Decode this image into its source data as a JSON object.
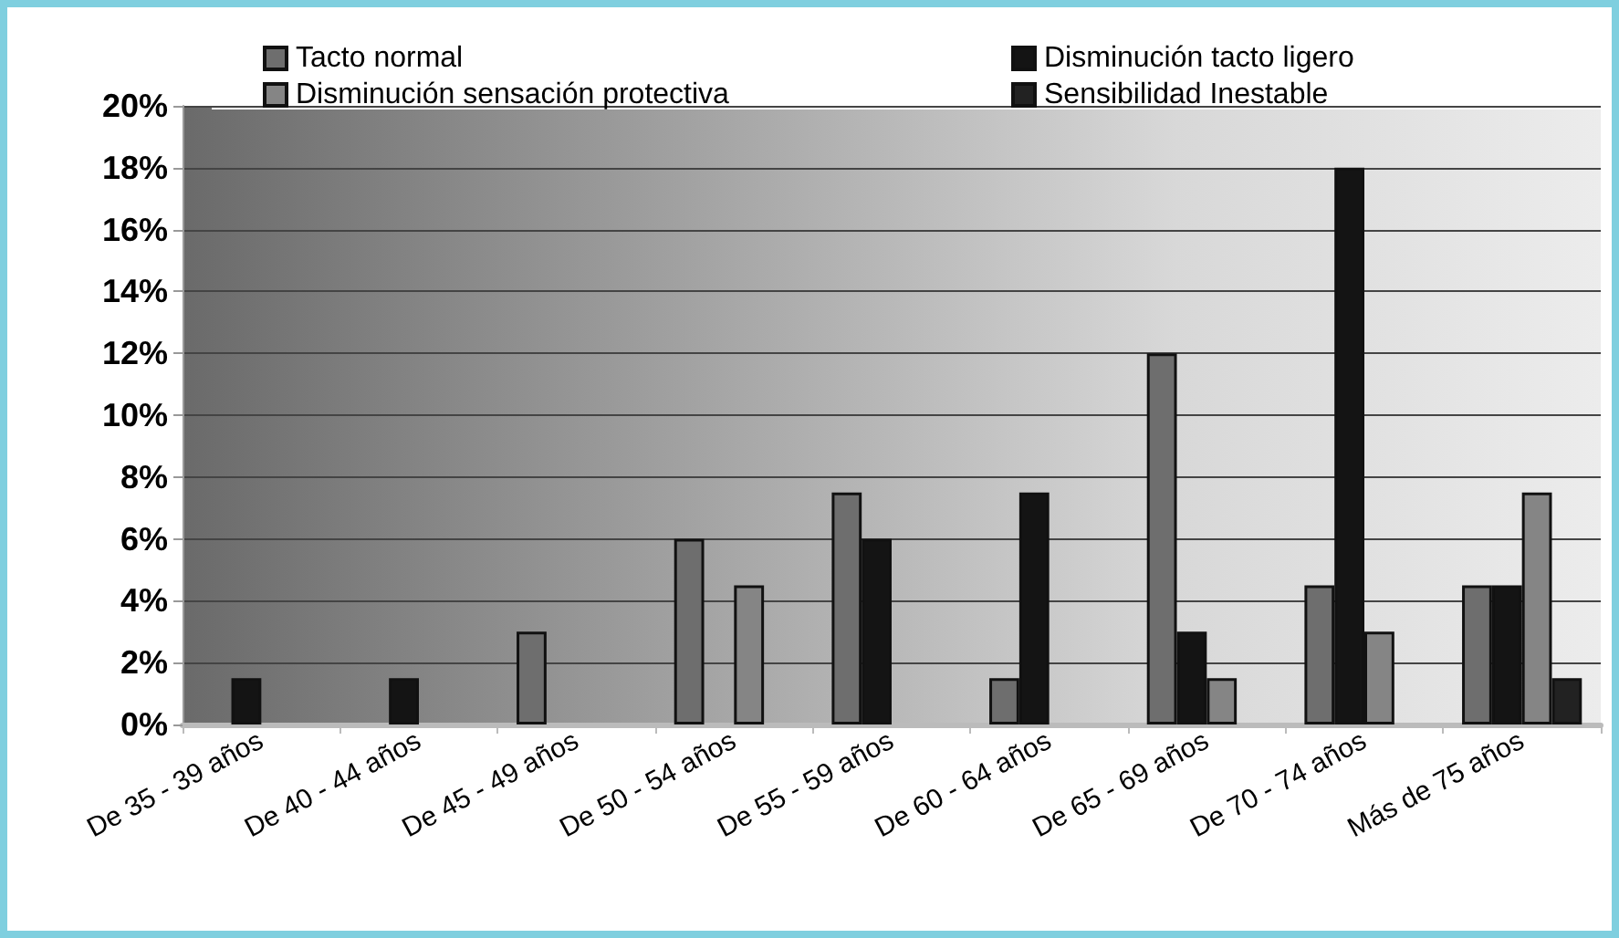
{
  "chart_data": {
    "type": "bar",
    "categories": [
      "De 35 - 39 años",
      "De 40 - 44 años",
      "De 45 - 49 años",
      "De 50 - 54 años",
      "De 55 - 59 años",
      "De 60 - 64 años",
      "De 65 - 69 años",
      "De 70 - 74 años",
      "Más de 75 años"
    ],
    "series": [
      {
        "name": "Tacto normal",
        "color": "#6e6e6e",
        "values": [
          null,
          null,
          3,
          6,
          7.5,
          1.5,
          12,
          4.5,
          4.5
        ]
      },
      {
        "name": "Disminución tacto ligero",
        "color": "#141414",
        "values": [
          1.5,
          1.5,
          null,
          null,
          6,
          7.5,
          3,
          18,
          4.5
        ]
      },
      {
        "name": "Disminución sensación protectiva",
        "color": "#858585",
        "values": [
          null,
          null,
          null,
          4.5,
          null,
          null,
          1.5,
          3,
          7.5
        ]
      },
      {
        "name": "Sensibilidad Inestable",
        "color": "#222222",
        "values": [
          null,
          null,
          null,
          null,
          null,
          null,
          null,
          null,
          1.5
        ]
      }
    ],
    "ylim": [
      0,
      20
    ],
    "yticks": [
      {
        "value": 0,
        "label": "0%"
      },
      {
        "value": 2,
        "label": "2%"
      },
      {
        "value": 4,
        "label": "4%"
      },
      {
        "value": 6,
        "label": "6%"
      },
      {
        "value": 8,
        "label": "8%"
      },
      {
        "value": 10,
        "label": "10%"
      },
      {
        "value": 12,
        "label": "12%"
      },
      {
        "value": 14,
        "label": "14%"
      },
      {
        "value": 16,
        "label": "16%"
      },
      {
        "value": 18,
        "label": "18%"
      },
      {
        "value": 20,
        "label": "20%"
      }
    ],
    "grid": "y",
    "legend": "top"
  }
}
